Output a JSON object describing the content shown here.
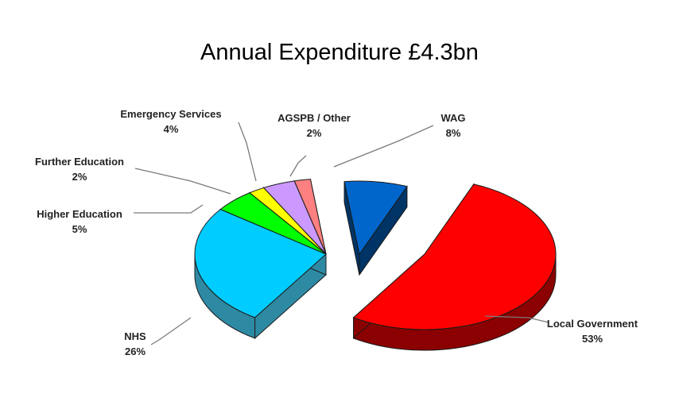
{
  "title": "Annual Expenditure £4.3bn",
  "chart_data": {
    "type": "pie",
    "title": "Annual Expenditure £4.3bn",
    "slices": [
      {
        "label": "Local Government",
        "pct_label": "53%",
        "value": 53,
        "color": "#ff0000",
        "side_color": "#8b0000"
      },
      {
        "label": "NHS",
        "pct_label": "26%",
        "value": 26,
        "color": "#00ccff",
        "side_color": "#2e8aa3"
      },
      {
        "label": "Higher Education",
        "pct_label": "5%",
        "value": 5,
        "color": "#00ff00",
        "side_color": "#008000"
      },
      {
        "label": "Further Education",
        "pct_label": "2%",
        "value": 2,
        "color": "#ffff00",
        "side_color": "#999900"
      },
      {
        "label": "Emergency Services",
        "pct_label": "4%",
        "value": 4,
        "color": "#cc99ff",
        "side_color": "#7f5fa6"
      },
      {
        "label": "AGSPB / Other",
        "pct_label": "2%",
        "value": 2,
        "color": "#ff8080",
        "side_color": "#a04848"
      },
      {
        "label": "WAG",
        "pct_label": "8%",
        "value": 8,
        "color": "#0066cc",
        "side_color": "#003466"
      }
    ],
    "legend": "none",
    "labels": "outside with leader lines"
  }
}
